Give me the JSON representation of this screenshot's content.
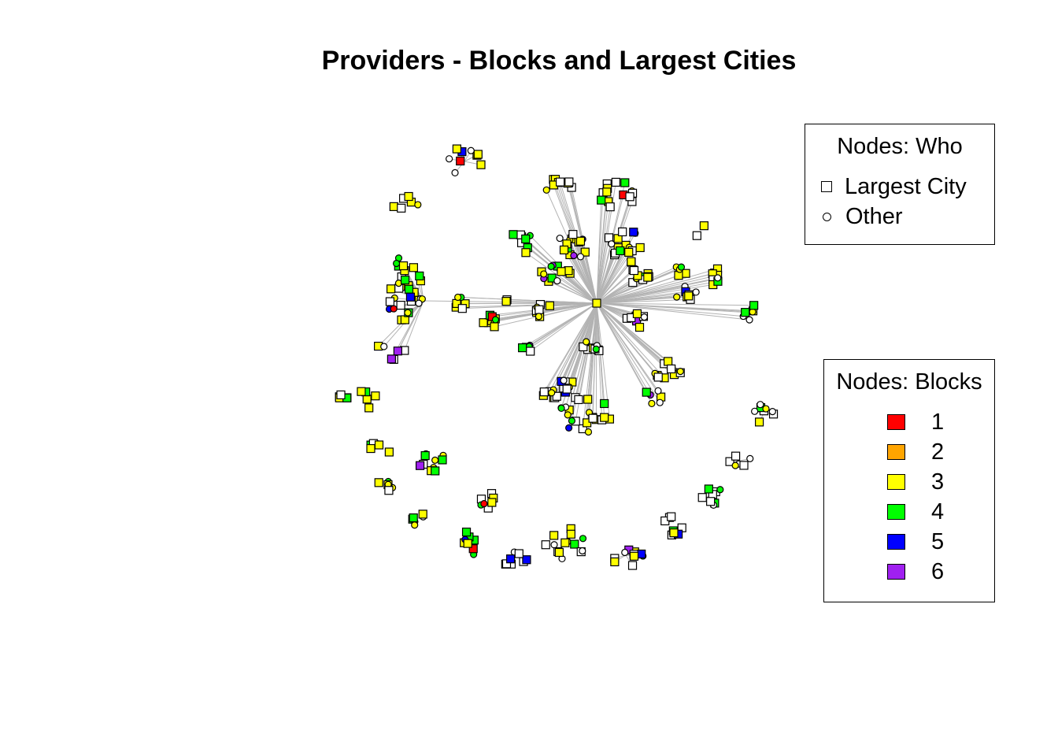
{
  "title": "Providers - Blocks and Largest Cities",
  "legend_who": {
    "title": "Nodes: Who",
    "items": [
      {
        "label": "Largest City",
        "shape": "square"
      },
      {
        "label": "Other",
        "shape": "circle"
      }
    ]
  },
  "legend_blocks": {
    "title": "Nodes: Blocks",
    "items": [
      {
        "label": "1",
        "color": "#ff0000"
      },
      {
        "label": "2",
        "color": "#ffa500"
      },
      {
        "label": "3",
        "color": "#ffff00"
      },
      {
        "label": "4",
        "color": "#00ff00"
      },
      {
        "label": "5",
        "color": "#0000ff"
      },
      {
        "label": "6",
        "color": "#a020f0"
      }
    ]
  },
  "colors": {
    "none": "#ffffff",
    "edge": "#b3b3b3",
    "border": "#000000"
  }
}
